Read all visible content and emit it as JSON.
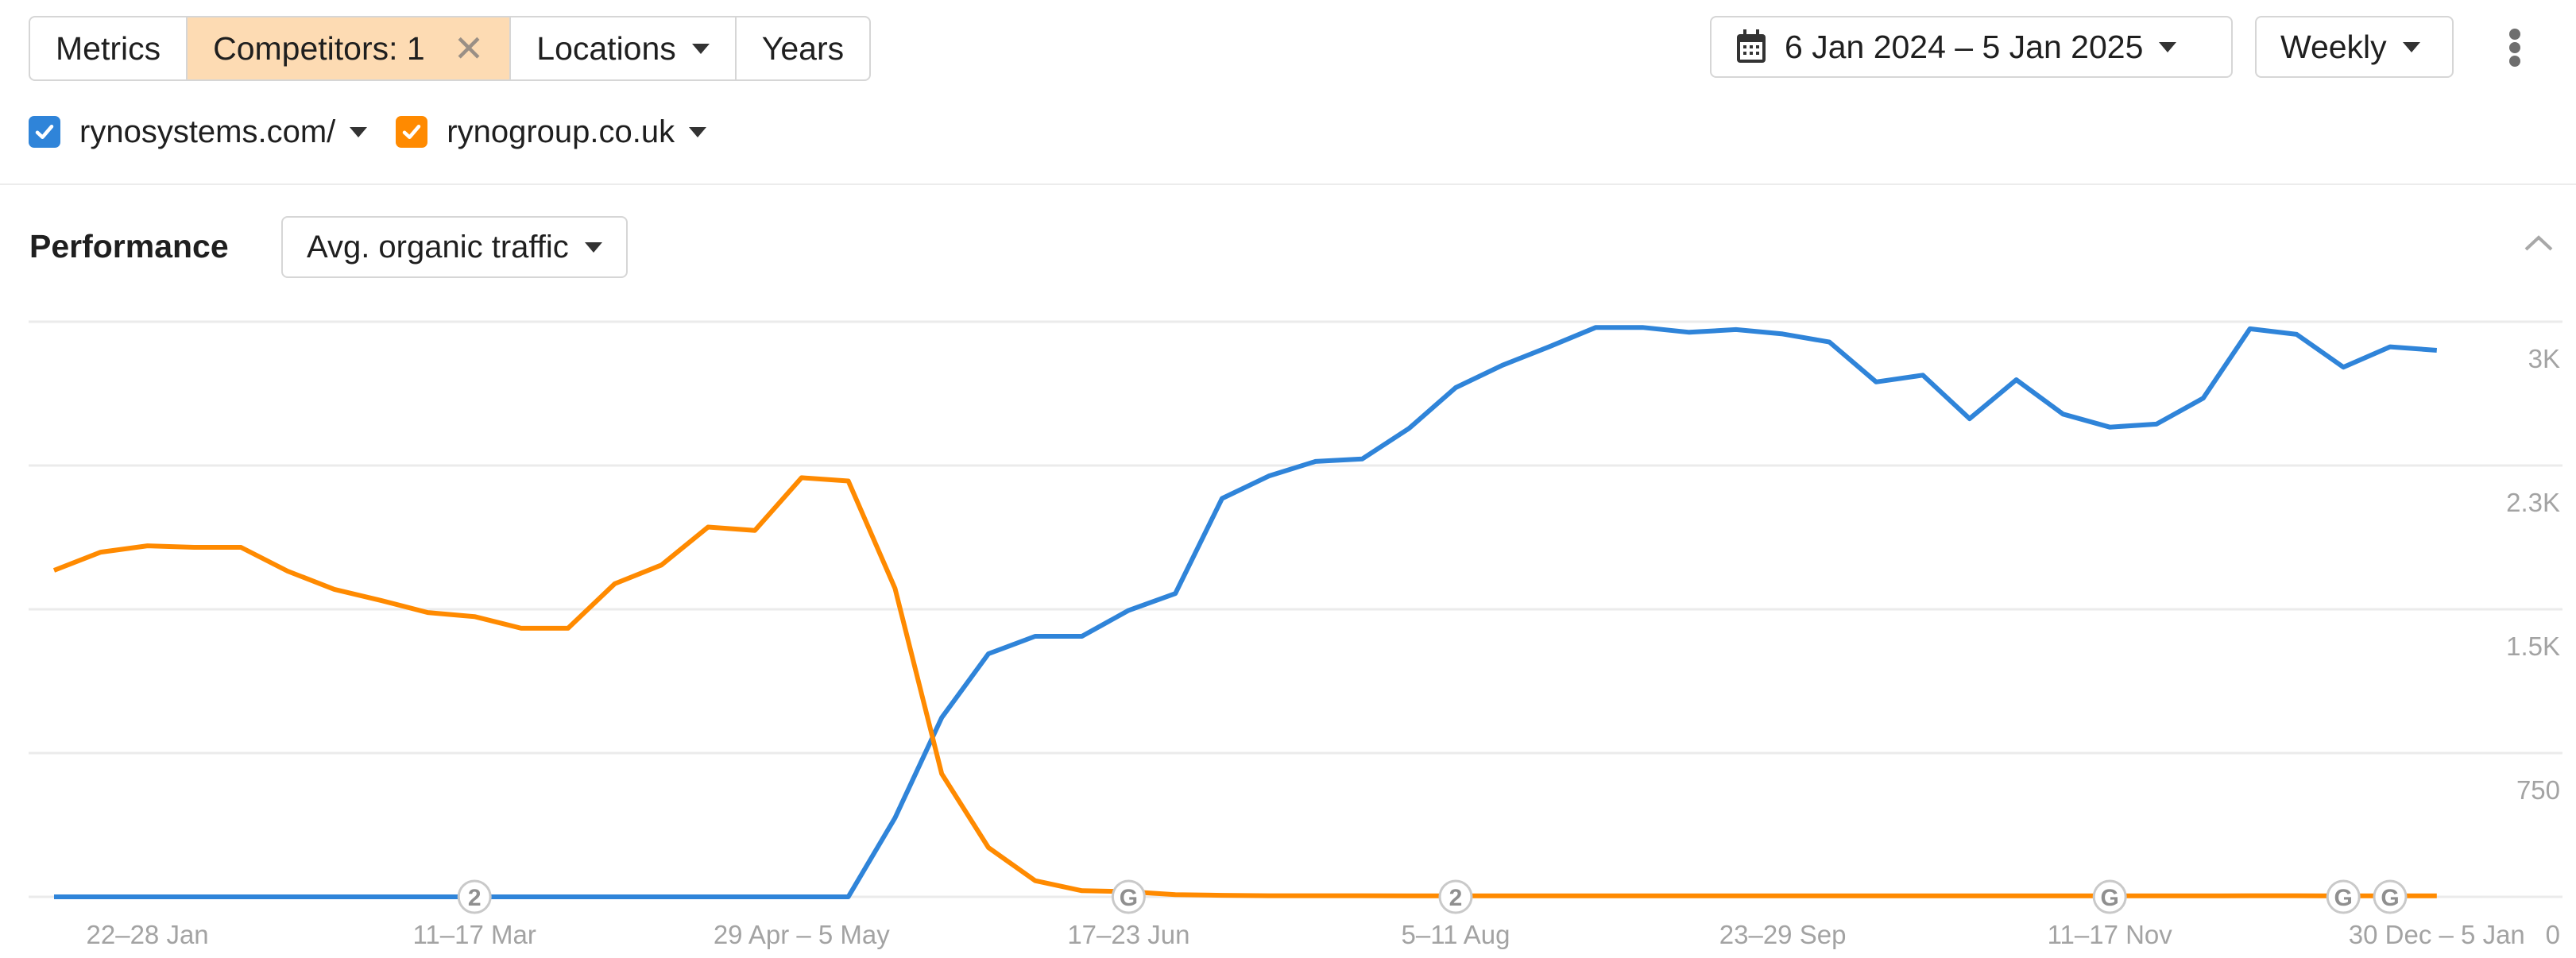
{
  "toolbar": {
    "segments": [
      {
        "label": "Metrics"
      },
      {
        "label": "Competitors: 1",
        "active": true,
        "close_icon": "close-icon"
      },
      {
        "label": "Locations",
        "dropdown": true
      },
      {
        "label": "Years"
      }
    ],
    "date_range": {
      "icon": "calendar-icon",
      "label": "6 Jan 2024 – 5 Jan 2025"
    },
    "interval": {
      "label": "Weekly"
    },
    "more_icon": "kebab-menu-icon"
  },
  "legend": {
    "items": [
      {
        "label": "rynosystems.com/",
        "checked": true,
        "color": "#2f84d9"
      },
      {
        "label": "rynogroup.co.uk",
        "checked": true,
        "color": "#ff8a00"
      }
    ]
  },
  "performance": {
    "title": "Performance",
    "metric_select": "Avg. organic traffic",
    "collapse_icon": "chevron-up-icon"
  },
  "colors": {
    "blue": "#2f84d9",
    "orange": "#ff8a00",
    "active_segment_bg": "#fddbb3",
    "grid": "#ebebeb",
    "axis_text": "#a3a3a3"
  },
  "chart_data": {
    "type": "line",
    "title": "Performance — Avg. organic traffic",
    "xlabel": "",
    "ylabel": "Avg. organic traffic",
    "ylim": [
      0,
      3000
    ],
    "y_ticks": [
      {
        "value": 0,
        "label": "0"
      },
      {
        "value": 750,
        "label": "750"
      },
      {
        "value": 1500,
        "label": "1.5K"
      },
      {
        "value": 2250,
        "label": "2.3K"
      },
      {
        "value": 3000,
        "label": "3K"
      }
    ],
    "grid": true,
    "y_axis_position": "right",
    "x_tick_labels": [
      {
        "index": 2,
        "label": "22–28 Jan"
      },
      {
        "index": 9,
        "label": "11–17 Mar"
      },
      {
        "index": 16,
        "label": "29 Apr – 5 May"
      },
      {
        "index": 23,
        "label": "17–23 Jun"
      },
      {
        "index": 30,
        "label": "5–11 Aug"
      },
      {
        "index": 37,
        "label": "23–29 Sep"
      },
      {
        "index": 44,
        "label": "11–17 Nov"
      },
      {
        "index": 51,
        "label": "30 Dec – 5 Jan"
      }
    ],
    "n_points": 52,
    "series": [
      {
        "name": "rynosystems.com/",
        "color": "#2f84d9",
        "values": [
          0,
          0,
          0,
          0,
          0,
          0,
          0,
          0,
          0,
          0,
          0,
          0,
          0,
          0,
          0,
          0,
          0,
          0,
          412,
          935,
          1268,
          1359,
          1359,
          1494,
          1582,
          2078,
          2195,
          2271,
          2284,
          2443,
          2656,
          2773,
          2869,
          2970,
          2970,
          2945,
          2959,
          2936,
          2894,
          2686,
          2721,
          2494,
          2697,
          2518,
          2450,
          2466,
          2601,
          2963,
          2934,
          2763,
          2869,
          2851
        ]
      },
      {
        "name": "rynogroup.co.uk",
        "color": "#ff8a00",
        "values": [
          1703,
          1798,
          1831,
          1823,
          1823,
          1699,
          1604,
          1546,
          1483,
          1462,
          1401,
          1401,
          1633,
          1731,
          1929,
          1911,
          2186,
          2169,
          1609,
          642,
          257,
          84,
          32,
          27,
          11,
          8,
          6,
          6,
          6,
          5,
          5,
          5,
          5,
          5,
          5,
          5,
          5,
          5,
          5,
          5,
          5,
          5,
          5,
          5,
          5,
          5,
          5,
          6,
          6,
          5,
          5,
          5
        ]
      }
    ],
    "annotations": [
      {
        "index": 9,
        "label": "2",
        "type": "count-marker"
      },
      {
        "index": 23,
        "label": "G",
        "type": "google-update-marker"
      },
      {
        "index": 30,
        "label": "2",
        "type": "count-marker"
      },
      {
        "index": 44,
        "label": "G",
        "type": "google-update-marker"
      },
      {
        "index": 49,
        "label": "G",
        "type": "google-update-marker"
      },
      {
        "index": 50,
        "label": "G",
        "type": "google-update-marker"
      }
    ]
  }
}
